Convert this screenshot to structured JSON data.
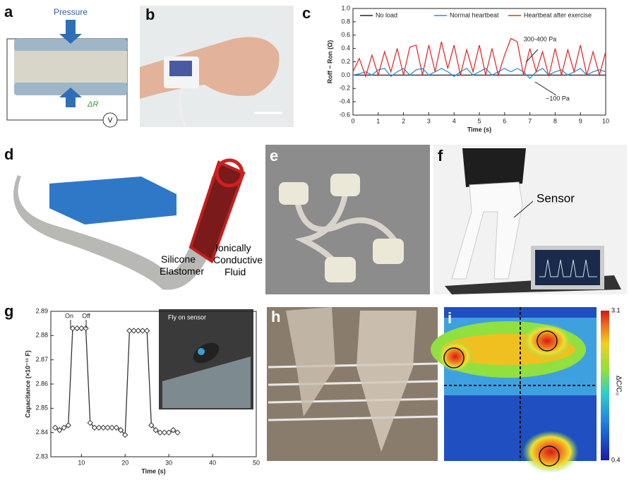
{
  "panel_labels": [
    "a",
    "b",
    "c",
    "d",
    "e",
    "f",
    "g",
    "h",
    "i"
  ],
  "panel_a": {
    "pressure": "Pressure",
    "delta_r": "ΔR",
    "voltmeter": "V"
  },
  "panel_d": {
    "silicone_label": [
      "Silicone",
      "Elastomer"
    ],
    "fluid_label": [
      "Ionically",
      "Conductive",
      "Fluid"
    ]
  },
  "panel_f": {
    "sensor": "Sensor"
  },
  "panel_g": {
    "inset": "Fly on sensor"
  },
  "panel_i": {
    "colorbar_label": "ΔC/C₀",
    "colorbar_max": 3.1,
    "colorbar_min": 0.4
  },
  "chart_data": [
    {
      "type": "line",
      "xlabel": "Time (s)",
      "ylabel": "Roff − Ron (Ω)",
      "x": [
        0,
        0.25,
        0.5,
        0.75,
        1,
        1.25,
        1.5,
        1.75,
        2,
        2.25,
        2.5,
        2.75,
        3,
        3.25,
        3.5,
        3.75,
        4,
        4.25,
        4.5,
        4.75,
        5,
        5.25,
        5.5,
        5.75,
        6,
        6.25,
        6.5,
        6.75,
        7,
        7.25,
        7.5,
        7.75,
        8,
        8.25,
        8.5,
        8.75,
        9,
        9.25,
        9.5,
        9.75,
        10
      ],
      "xlim": [
        0,
        10
      ],
      "xticks": [
        0,
        1,
        2,
        3,
        4,
        5,
        6,
        7,
        8,
        9,
        10
      ],
      "ylim": [
        -0.6,
        1.0
      ],
      "yticks": [
        -0.6,
        -0.4,
        -0.2,
        {
          "value": 0,
          "label": "0.0"
        },
        0.2,
        0.4,
        0.6,
        0.8,
        {
          "value": 1,
          "label": "1.0"
        }
      ],
      "legend": "top",
      "series": [
        {
          "name": "No load",
          "color": "#222222",
          "values": [
            0,
            0,
            0,
            0,
            0,
            0,
            0,
            0,
            0,
            0,
            0,
            0,
            0,
            0,
            0,
            0,
            0,
            0,
            0,
            0,
            0,
            0,
            0,
            0,
            0,
            0,
            0,
            0,
            0,
            0,
            0,
            0,
            0,
            0,
            0,
            0,
            0,
            0,
            0,
            0,
            0
          ]
        },
        {
          "name": "Normal heartbeat",
          "color": "#2a8fd8",
          "values": [
            0,
            0.02,
            0.05,
            0,
            0.08,
            0.1,
            -0.02,
            0.05,
            0.1,
            0,
            0.08,
            0.1,
            0,
            0.05,
            0.1,
            0.05,
            -0.02,
            0.05,
            0.1,
            0,
            0.05,
            0.1,
            0,
            0.05,
            0.1,
            0.05,
            0.1,
            0.05,
            -0.05,
            0.05,
            0.1,
            0,
            0.05,
            0.08,
            0,
            0.05,
            0.1,
            0,
            0.05,
            0.08,
            0.05
          ]
        },
        {
          "name": "Heartbeat after exercise",
          "color": "#e03030",
          "values": [
            0.05,
            0.25,
            -0.02,
            0.3,
            0,
            0.35,
            0.05,
            0.4,
            0,
            0.42,
            0.45,
            0,
            0.45,
            0.05,
            0.5,
            0.1,
            0.45,
            0,
            0.38,
            0.05,
            0.45,
            0,
            0.4,
            0,
            0.3,
            0.55,
            0.5,
            0,
            0.4,
            0.05,
            0.35,
            -0.02,
            0.4,
            0,
            0.38,
            0.05,
            0.45,
            0,
            0.35,
            0,
            0.35
          ]
        }
      ],
      "annotations": [
        "300-400 Pa",
        "~100 Pa"
      ]
    },
    {
      "type": "line",
      "marker": "diamond",
      "xlabel": "Time (s)",
      "ylabel": "Capacitance (×10⁻¹¹ F)",
      "x": [
        4,
        5,
        6,
        7,
        8,
        9,
        10,
        11,
        12,
        13,
        14,
        15,
        16,
        17,
        18,
        19,
        20,
        21,
        22,
        23,
        24,
        25,
        26,
        27,
        28,
        29,
        30,
        31,
        32
      ],
      "xlim": [
        3,
        50
      ],
      "xticks": [
        10,
        20,
        30,
        40,
        50
      ],
      "ylim": [
        2.83,
        2.89
      ],
      "yticks": [
        2.83,
        2.84,
        2.85,
        2.86,
        2.87,
        2.88,
        2.89
      ],
      "series": [
        {
          "color": "#333333",
          "values": [
            2.842,
            2.841,
            2.842,
            2.843,
            2.883,
            2.883,
            2.883,
            2.883,
            2.844,
            2.842,
            2.842,
            2.842,
            2.842,
            2.842,
            2.842,
            2.841,
            2.839,
            2.882,
            2.882,
            2.882,
            2.882,
            2.882,
            2.843,
            2.841,
            2.84,
            2.84,
            2.84,
            2.841,
            2.84
          ]
        }
      ],
      "annotations": [
        "On",
        "Off"
      ]
    }
  ]
}
